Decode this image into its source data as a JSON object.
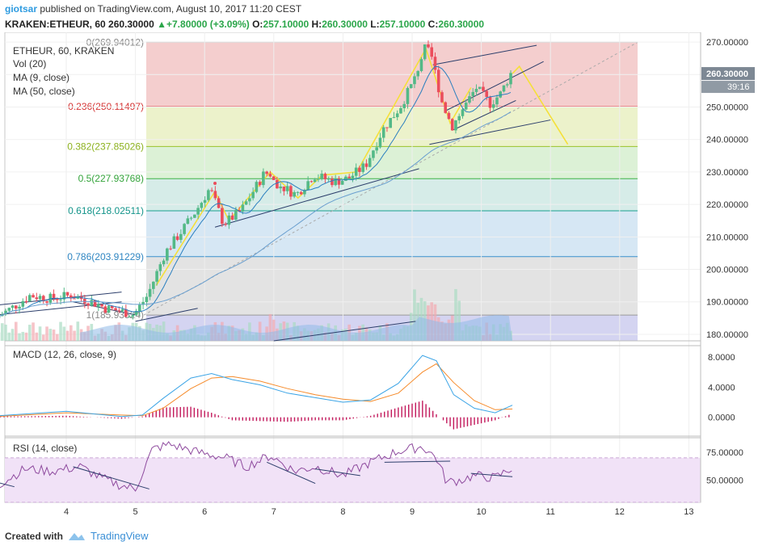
{
  "header": {
    "user": "giotsar",
    "published_text": "published on TradingView.com, August 10, 2017 11:20 CEST",
    "symbol": "KRAKEN:ETHEUR, 60",
    "price": "260.30000",
    "change": "+7.80000 (+3.09%)",
    "o_label": "O:",
    "o_value": "257.10000",
    "h_label": "H:",
    "h_value": "260.30000",
    "l_label": "L:",
    "l_value": "257.10000",
    "c_label": "C:",
    "c_value": "260.30000"
  },
  "legend": {
    "main": "ETHEUR, 60, KRAKEN",
    "vol": "Vol (20)",
    "ma9": "MA (9, close)",
    "ma50": "MA (50, close)",
    "macd": "MACD (12, 26, close, 9)",
    "rsi": "RSI (14, close)"
  },
  "footer": {
    "created_with": "Created with",
    "brand": "TradingView"
  },
  "colors": {
    "up": "#53b987",
    "down": "#eb4d5c",
    "macd": "#3ba4e6",
    "signal": "#f68b2b",
    "hist": "#c2185b",
    "rsi": "#8e4a9e",
    "zigzag": "#f5e03a",
    "price_tag": "#7d8894"
  },
  "chart_data": {
    "type": "candlestick",
    "symbol": "ETHEUR",
    "interval": "60",
    "x_tick_labels": [
      "4",
      "5",
      "6",
      "7",
      "8",
      "9",
      "10",
      "11",
      "12",
      "13"
    ],
    "y_tick_labels": [
      "180.00000",
      "190.00000",
      "200.00000",
      "210.00000",
      "220.00000",
      "230.00000",
      "240.00000",
      "250.00000",
      "260.00000",
      "270.00000"
    ],
    "y_range": [
      178,
      273
    ],
    "last_price": "260.30000",
    "countdown": "39:16",
    "fibonacci": [
      {
        "level": "0",
        "price": 269.94012,
        "label": "0(269.94012)"
      },
      {
        "level": "0.236",
        "price": 250.11497,
        "label": "0.236(250.11497)"
      },
      {
        "level": "0.382",
        "price": 237.85026,
        "label": "0.382(237.85026)"
      },
      {
        "level": "0.5",
        "price": 227.93768,
        "label": "0.5(227.93768)"
      },
      {
        "level": "0.618",
        "price": 218.02511,
        "label": "0.618(218.02511)"
      },
      {
        "level": "0.786",
        "price": 203.91229,
        "label": "0.786(203.91229)"
      },
      {
        "level": "1",
        "price": 185.93524,
        "label": "1(185.93524)"
      }
    ],
    "price_path": [
      {
        "day": 3.0,
        "price": 185
      },
      {
        "day": 3.3,
        "price": 189
      },
      {
        "day": 3.5,
        "price": 192
      },
      {
        "day": 3.8,
        "price": 191
      },
      {
        "day": 4.1,
        "price": 192
      },
      {
        "day": 4.4,
        "price": 190
      },
      {
        "day": 4.6,
        "price": 188
      },
      {
        "day": 4.85,
        "price": 187
      },
      {
        "day": 5.0,
        "price": 186
      },
      {
        "day": 5.2,
        "price": 192
      },
      {
        "day": 5.45,
        "price": 205
      },
      {
        "day": 5.7,
        "price": 212
      },
      {
        "day": 5.9,
        "price": 218
      },
      {
        "day": 6.1,
        "price": 225
      },
      {
        "day": 6.3,
        "price": 214
      },
      {
        "day": 6.55,
        "price": 218
      },
      {
        "day": 6.9,
        "price": 230
      },
      {
        "day": 7.1,
        "price": 226
      },
      {
        "day": 7.35,
        "price": 223
      },
      {
        "day": 7.6,
        "price": 229
      },
      {
        "day": 7.9,
        "price": 227
      },
      {
        "day": 8.1,
        "price": 228
      },
      {
        "day": 8.35,
        "price": 232
      },
      {
        "day": 8.6,
        "price": 243
      },
      {
        "day": 8.85,
        "price": 250
      },
      {
        "day": 9.05,
        "price": 258
      },
      {
        "day": 9.2,
        "price": 268
      },
      {
        "day": 9.3,
        "price": 266
      },
      {
        "day": 9.45,
        "price": 252
      },
      {
        "day": 9.6,
        "price": 244
      },
      {
        "day": 9.75,
        "price": 249
      },
      {
        "day": 9.95,
        "price": 256
      },
      {
        "day": 10.15,
        "price": 251
      },
      {
        "day": 10.3,
        "price": 254
      },
      {
        "day": 10.45,
        "price": 260.3
      }
    ],
    "projection": [
      {
        "day": 10.45,
        "price": 260.3
      },
      {
        "day": 10.55,
        "price": 262.5
      },
      {
        "day": 11.25,
        "price": 238.5
      }
    ],
    "macd_range": [
      -2.5,
      9.5
    ],
    "macd_tick_labels": [
      "8.0000",
      "4.0000",
      "0.0000"
    ],
    "macd_path": [
      {
        "day": 3.0,
        "v": 0.2
      },
      {
        "day": 4.0,
        "v": 0.8
      },
      {
        "day": 4.8,
        "v": 0.1
      },
      {
        "day": 5.1,
        "v": 0.3
      },
      {
        "day": 5.4,
        "v": 2.5
      },
      {
        "day": 5.8,
        "v": 5.2
      },
      {
        "day": 6.1,
        "v": 5.8
      },
      {
        "day": 6.4,
        "v": 5.0
      },
      {
        "day": 6.8,
        "v": 4.3
      },
      {
        "day": 7.2,
        "v": 3.2
      },
      {
        "day": 7.6,
        "v": 2.6
      },
      {
        "day": 8.0,
        "v": 2.0
      },
      {
        "day": 8.4,
        "v": 2.3
      },
      {
        "day": 8.8,
        "v": 4.5
      },
      {
        "day": 9.15,
        "v": 8.2
      },
      {
        "day": 9.35,
        "v": 7.5
      },
      {
        "day": 9.6,
        "v": 3.0
      },
      {
        "day": 9.9,
        "v": 1.2
      },
      {
        "day": 10.2,
        "v": 0.6
      },
      {
        "day": 10.45,
        "v": 1.6
      }
    ],
    "signal_path": [
      {
        "day": 3.0,
        "v": 0.1
      },
      {
        "day": 4.0,
        "v": 0.6
      },
      {
        "day": 4.8,
        "v": 0.3
      },
      {
        "day": 5.1,
        "v": 0.2
      },
      {
        "day": 5.4,
        "v": 1.2
      },
      {
        "day": 5.8,
        "v": 3.8
      },
      {
        "day": 6.1,
        "v": 5.2
      },
      {
        "day": 6.4,
        "v": 5.4
      },
      {
        "day": 6.8,
        "v": 4.8
      },
      {
        "day": 7.2,
        "v": 3.8
      },
      {
        "day": 7.6,
        "v": 3.0
      },
      {
        "day": 8.0,
        "v": 2.4
      },
      {
        "day": 8.4,
        "v": 2.1
      },
      {
        "day": 8.8,
        "v": 3.2
      },
      {
        "day": 9.15,
        "v": 6.0
      },
      {
        "day": 9.35,
        "v": 7.1
      },
      {
        "day": 9.6,
        "v": 4.6
      },
      {
        "day": 9.9,
        "v": 2.2
      },
      {
        "day": 10.2,
        "v": 1.0
      },
      {
        "day": 10.45,
        "v": 1.1
      }
    ],
    "rsi_range": [
      30,
      88
    ],
    "rsi_band": [
      30,
      70
    ],
    "rsi_tick_labels": [
      "75.00000",
      "50.00000"
    ],
    "rsi_path": [
      {
        "day": 3.0,
        "v": 45
      },
      {
        "day": 3.4,
        "v": 60
      },
      {
        "day": 3.8,
        "v": 58
      },
      {
        "day": 4.2,
        "v": 62
      },
      {
        "day": 4.5,
        "v": 52
      },
      {
        "day": 4.8,
        "v": 45
      },
      {
        "day": 5.0,
        "v": 42
      },
      {
        "day": 5.25,
        "v": 78
      },
      {
        "day": 5.5,
        "v": 82
      },
      {
        "day": 5.9,
        "v": 75
      },
      {
        "day": 6.3,
        "v": 70
      },
      {
        "day": 6.6,
        "v": 62
      },
      {
        "day": 6.95,
        "v": 72
      },
      {
        "day": 7.3,
        "v": 58
      },
      {
        "day": 7.6,
        "v": 62
      },
      {
        "day": 8.0,
        "v": 54
      },
      {
        "day": 8.4,
        "v": 66
      },
      {
        "day": 8.8,
        "v": 76
      },
      {
        "day": 9.15,
        "v": 80
      },
      {
        "day": 9.35,
        "v": 70
      },
      {
        "day": 9.5,
        "v": 48
      },
      {
        "day": 9.7,
        "v": 50
      },
      {
        "day": 9.9,
        "v": 54
      },
      {
        "day": 10.2,
        "v": 52
      },
      {
        "day": 10.45,
        "v": 61
      }
    ]
  }
}
